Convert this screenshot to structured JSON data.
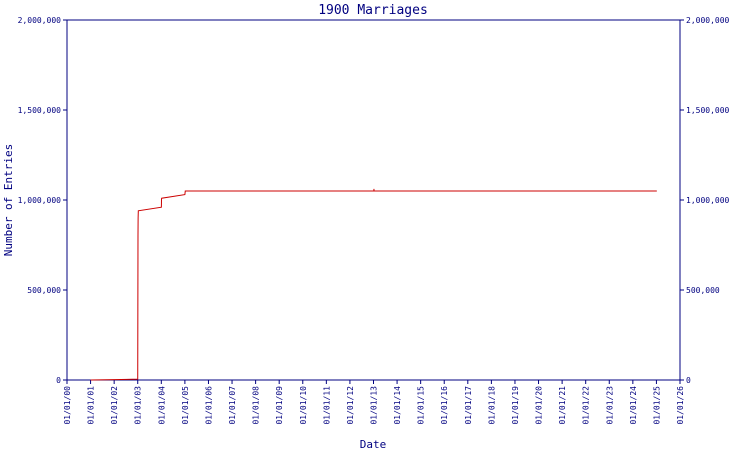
{
  "chart_data": {
    "type": "line",
    "title": "1900 Marriages",
    "xlabel": "Date",
    "ylabel": "Number of Entries",
    "x_ticks": [
      "01/01/00",
      "01/01/01",
      "01/01/02",
      "01/01/03",
      "01/01/04",
      "01/01/05",
      "01/01/06",
      "01/01/07",
      "01/01/08",
      "01/01/09",
      "01/01/10",
      "01/01/11",
      "01/01/12",
      "01/01/13",
      "01/01/14",
      "01/01/15",
      "01/01/16",
      "01/01/17",
      "01/01/18",
      "01/01/19",
      "01/01/20",
      "01/01/21",
      "01/01/22",
      "01/01/23",
      "01/01/24",
      "01/01/25",
      "01/01/26"
    ],
    "y_ticks": [
      "0",
      "500,000",
      "1,000,000",
      "1,500,000",
      "2,000,000"
    ],
    "ylim": [
      0,
      2000000
    ],
    "series": [
      {
        "color": "#cc0000",
        "points": [
          {
            "x": "01/01/01",
            "y": 0
          },
          {
            "x": "01/01/02",
            "y": 2000
          },
          {
            "x": "01/01/03",
            "y": 5000
          },
          {
            "x": "01/03/03",
            "y": 400000
          },
          {
            "x": "01/05/03",
            "y": 800000
          },
          {
            "x": "01/07/03",
            "y": 900000
          },
          {
            "x": "01/10/03",
            "y": 940000
          },
          {
            "x": "01/02/04",
            "y": 960000
          },
          {
            "x": "01/03/04",
            "y": 980000
          },
          {
            "x": "01/04/04",
            "y": 1005000
          },
          {
            "x": "01/07/04",
            "y": 1010000
          },
          {
            "x": "01/01/05",
            "y": 1030000
          },
          {
            "x": "01/07/05",
            "y": 1050000
          },
          {
            "x": "01/01/08",
            "y": 1050000
          },
          {
            "x": "01/01/13",
            "y": 1050000
          },
          {
            "x": "01/07/13",
            "y": 1050000
          },
          {
            "x": "01/08/13",
            "y": 1062000
          },
          {
            "x": "01/09/13",
            "y": 1050000
          },
          {
            "x": "01/01/20",
            "y": 1050000
          },
          {
            "x": "01/07/25",
            "y": 1050000
          }
        ]
      }
    ]
  }
}
